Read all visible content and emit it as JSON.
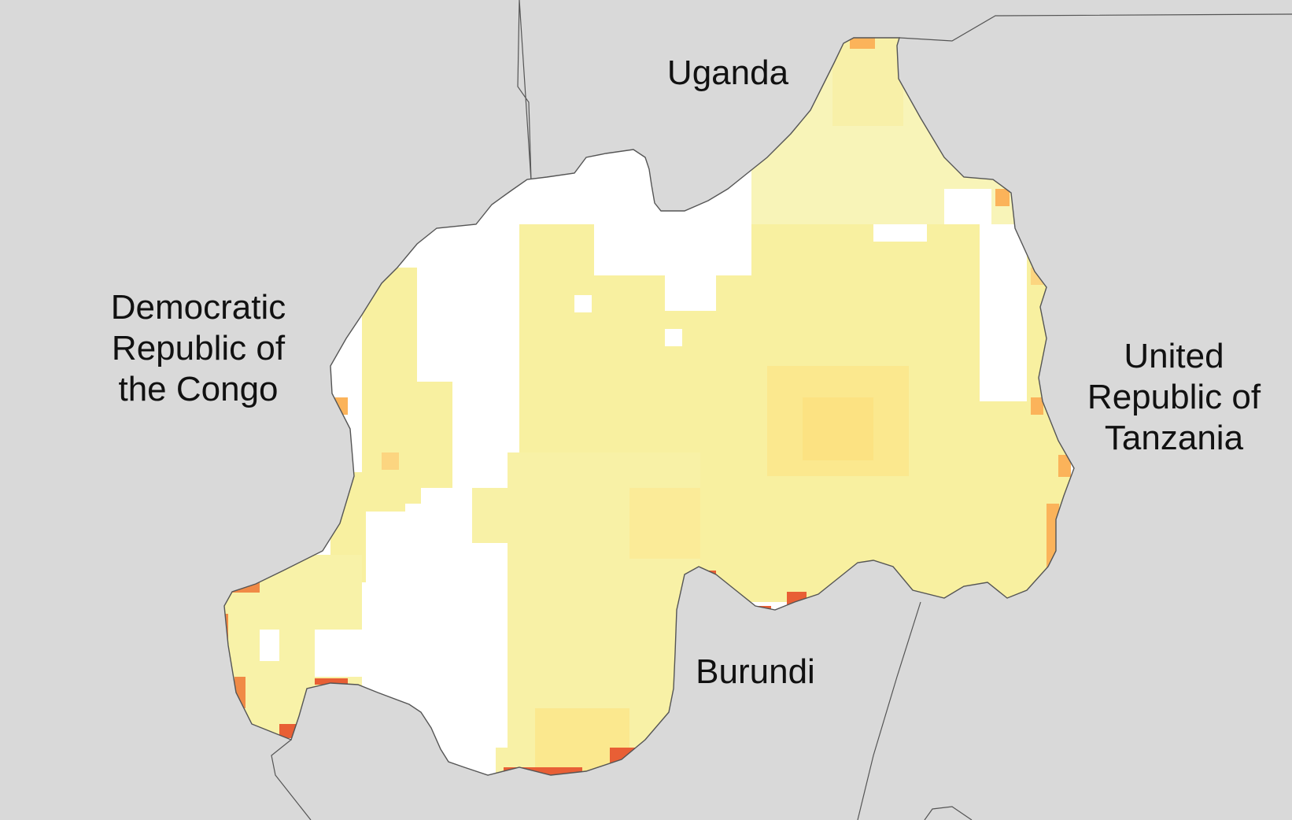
{
  "map": {
    "countries": {
      "uganda": "Uganda",
      "drc": [
        "Democratic",
        "Republic of",
        "the Congo"
      ],
      "tanzania": [
        "United",
        "Republic of",
        "Tanzania"
      ],
      "burundi": "Burundi"
    },
    "colors": {
      "background": "#d9d9d9",
      "border": "#555555",
      "no_data": "#ffffff",
      "scale": [
        "#f8f4b8",
        "#f8f0a0",
        "#fbe88e",
        "#fcd580",
        "#fbb35a",
        "#f08a46",
        "#e85f35"
      ]
    }
  }
}
